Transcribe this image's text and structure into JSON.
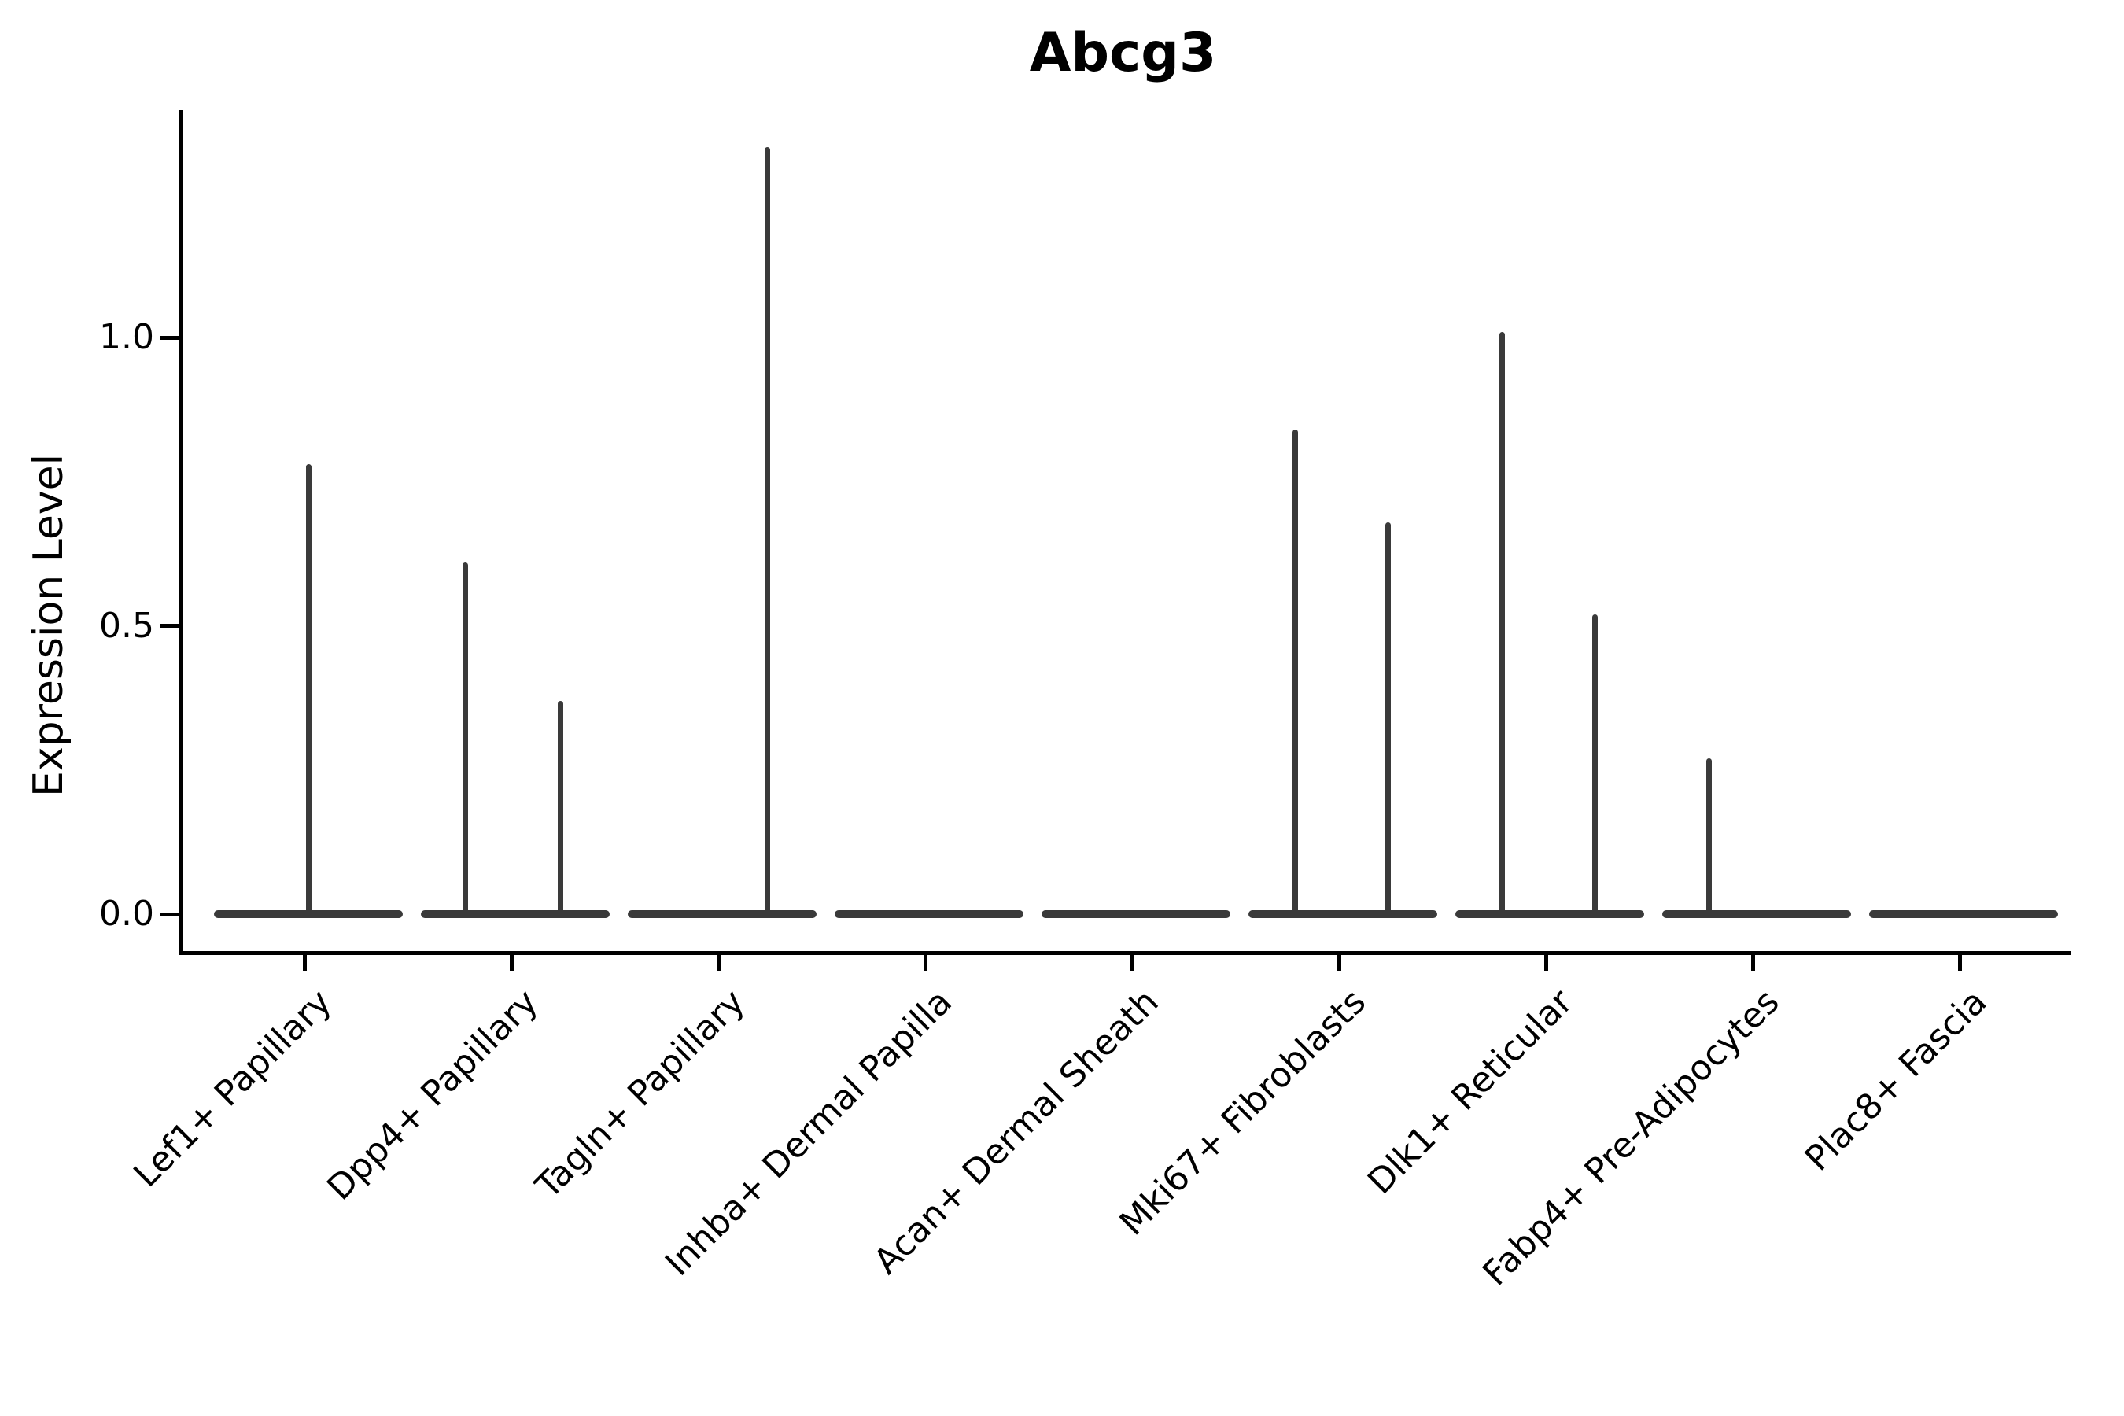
{
  "figure_title": "Abcg3",
  "y_axis": {
    "label": "Expression Level",
    "tick_labels": [
      "0.0",
      "0.5",
      "1.0"
    ]
  },
  "x_axis": {
    "tick_labels": [
      "Lef1+ Papillary",
      "Dpp4+ Papillary",
      "Tagln+ Papillary",
      "Inhba+ Dermal Papilla",
      "Acan+ Dermal Sheath",
      "Mki67+ Fibroblasts",
      "Dlk1+ Reticular",
      "Fabp4+ Pre-Adipocytes",
      "Plac8+ Fascia"
    ]
  },
  "chart_data": {
    "type": "violin",
    "title": "Abcg3",
    "xlabel": "",
    "ylabel": "Expression Level",
    "ytick_values": [
      0.0,
      0.5,
      1.0
    ],
    "ytick_labels": [
      "0.0",
      "0.5",
      "1.0"
    ],
    "ylim": [
      -0.07,
      1.39
    ],
    "grid": false,
    "legend": "none",
    "categories": [
      "Lef1+ Papillary",
      "Dpp4+ Papillary",
      "Tagln+ Papillary",
      "Inhba+ Dermal Papilla",
      "Acan+ Dermal Sheath",
      "Mki67+ Fibroblasts",
      "Dlk1+ Reticular",
      "Fabp4+ Pre-Adipocytes",
      "Plac8+ Fascia"
    ],
    "violins": [
      {
        "label": "Lef1+ Papillary",
        "zero_bulk": true,
        "peaks": [
          {
            "offset": 0.0,
            "value": 0.78
          }
        ]
      },
      {
        "label": "Dpp4+ Papillary",
        "zero_bulk": true,
        "peaks": [
          {
            "offset": -0.24,
            "value": 0.61
          },
          {
            "offset": 0.22,
            "value": 0.37
          }
        ]
      },
      {
        "label": "Tagln+ Papillary",
        "zero_bulk": true,
        "peaks": [
          {
            "offset": 0.22,
            "value": 1.33
          }
        ]
      },
      {
        "label": "Inhba+ Dermal Papilla",
        "zero_bulk": true,
        "peaks": []
      },
      {
        "label": "Acan+ Dermal Sheath",
        "zero_bulk": true,
        "peaks": []
      },
      {
        "label": "Mki67+ Fibroblasts",
        "zero_bulk": true,
        "peaks": [
          {
            "offset": -0.23,
            "value": 0.84
          },
          {
            "offset": 0.22,
            "value": 0.68
          }
        ]
      },
      {
        "label": "Dlk1+ Reticular",
        "zero_bulk": true,
        "peaks": [
          {
            "offset": -0.23,
            "value": 1.01
          },
          {
            "offset": 0.22,
            "value": 0.52
          }
        ]
      },
      {
        "label": "Fabp4+ Pre-Adipocytes",
        "zero_bulk": true,
        "peaks": [
          {
            "offset": -0.23,
            "value": 0.27
          }
        ]
      },
      {
        "label": "Plac8+ Fascia",
        "zero_bulk": true,
        "peaks": []
      }
    ],
    "colors": {
      "violin": "#3a3a3a",
      "axis": "#000000",
      "text": "#000000",
      "background": "#ffffff"
    }
  }
}
